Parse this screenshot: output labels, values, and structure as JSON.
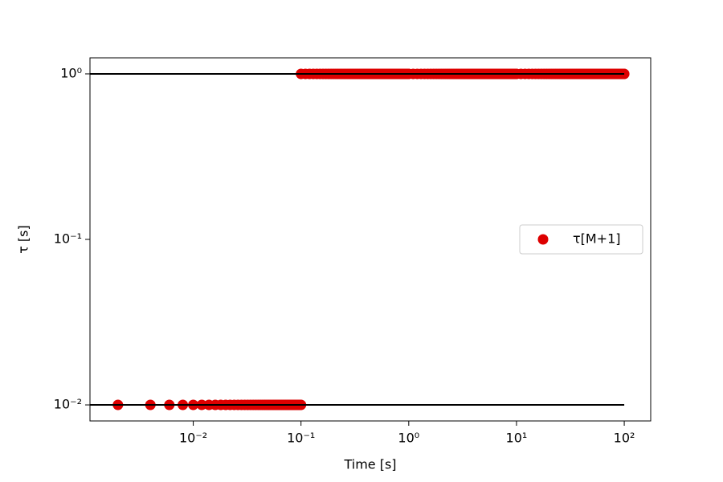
{
  "chart_data": {
    "type": "scatter",
    "xlabel": "Time [s]",
    "ylabel": "τ [s]",
    "xscale": "log",
    "yscale": "log",
    "xlim": [
      0.0011,
      176
    ],
    "ylim": [
      0.008,
      1.25
    ],
    "xticks": [
      {
        "value": 0.01,
        "label": "10⁻²"
      },
      {
        "value": 0.1,
        "label": "10⁻¹"
      },
      {
        "value": 1,
        "label": "10⁰"
      },
      {
        "value": 10,
        "label": "10¹"
      },
      {
        "value": 100,
        "label": "10²"
      }
    ],
    "yticks": [
      {
        "value": 0.01,
        "label": "10⁻²"
      },
      {
        "value": 0.1,
        "label": "10⁻¹"
      },
      {
        "value": 1,
        "label": "10⁰"
      }
    ],
    "legend": "right",
    "hlines": [
      {
        "y": 1,
        "xmax": 100,
        "color": "#000000"
      },
      {
        "y": 0.01,
        "xmax": 100,
        "color": "#000000"
      }
    ],
    "x": [
      0.002,
      0.004,
      0.006,
      0.008,
      0.01,
      0.012,
      0.014,
      0.016,
      0.018,
      0.02,
      0.022,
      0.024,
      0.026,
      0.028,
      0.03,
      0.032,
      0.034,
      0.036,
      0.038,
      0.04,
      0.042,
      0.044,
      0.046,
      0.048,
      0.05,
      0.052,
      0.054,
      0.056,
      0.058,
      0.06,
      0.062,
      0.064,
      0.066,
      0.068,
      0.07,
      0.072,
      0.074,
      0.076,
      0.078,
      0.08,
      0.082,
      0.084,
      0.086,
      0.088,
      0.09,
      0.092,
      0.094,
      0.096,
      0.098,
      0.1,
      0.1,
      0.11,
      0.12,
      0.13,
      0.14,
      0.15,
      0.16,
      0.17,
      0.18,
      0.19,
      0.2,
      0.21,
      0.22,
      0.23,
      0.24,
      0.25,
      0.26,
      0.27,
      0.28,
      0.29,
      0.3,
      0.31,
      0.32,
      0.33,
      0.34,
      0.35,
      0.36,
      0.37,
      0.38,
      0.39,
      0.4,
      0.41,
      0.42,
      0.43,
      0.44,
      0.45,
      0.46,
      0.47,
      0.48,
      0.49,
      0.5,
      0.51,
      0.52,
      0.53,
      0.54,
      0.55,
      0.56,
      0.57,
      0.58,
      0.59,
      0.6,
      0.61,
      0.62,
      0.63,
      0.64,
      0.65,
      0.66,
      0.67,
      0.68,
      0.69,
      0.7,
      0.71,
      0.72,
      0.73,
      0.74,
      0.75,
      0.76,
      0.77,
      0.78,
      0.79,
      0.8,
      0.81,
      0.82,
      0.83,
      0.84,
      0.85,
      0.86,
      0.87,
      0.88,
      0.89,
      0.9,
      0.91,
      0.92,
      0.93,
      0.94,
      0.95,
      0.96,
      0.97,
      0.98,
      0.99,
      1,
      1.1,
      1.2,
      1.3,
      1.4,
      1.5,
      1.6,
      1.7,
      1.8,
      1.9,
      2,
      2.1,
      2.2,
      2.3,
      2.4,
      2.5,
      2.6,
      2.7,
      2.8,
      2.9,
      3,
      3.1,
      3.2,
      3.3,
      3.4,
      3.5,
      3.6,
      3.7,
      3.8,
      3.9,
      4,
      4.1,
      4.2,
      4.3,
      4.4,
      4.5,
      4.6,
      4.7,
      4.8,
      4.9,
      5,
      5.1,
      5.2,
      5.3,
      5.4,
      5.5,
      5.6,
      5.7,
      5.8,
      5.9,
      6,
      6.1,
      6.2,
      6.3,
      6.4,
      6.5,
      6.6,
      6.7,
      6.8,
      6.9,
      7,
      7.1,
      7.2,
      7.3,
      7.4,
      7.5,
      7.6,
      7.7,
      7.8,
      7.9,
      8,
      8.1,
      8.2,
      8.3,
      8.4,
      8.5,
      8.6,
      8.7,
      8.8,
      8.9,
      9,
      9.1,
      9.2,
      9.3,
      9.4,
      9.5,
      9.6,
      9.7,
      9.8,
      9.9,
      10,
      11,
      12,
      13,
      14,
      15,
      16,
      17,
      18,
      19,
      20,
      21,
      22,
      23,
      24,
      25,
      26,
      27,
      28,
      29,
      30,
      31,
      32,
      33,
      34,
      35,
      36,
      37,
      38,
      39,
      40,
      41,
      42,
      43,
      44,
      45,
      46,
      47,
      48,
      49,
      50,
      51,
      52,
      53,
      54,
      55,
      56,
      57,
      58,
      59,
      60,
      61,
      62,
      63,
      64,
      65,
      66,
      67,
      68,
      69,
      70,
      71,
      72,
      73,
      74,
      75,
      76,
      77,
      78,
      79,
      80,
      81,
      82,
      83,
      84,
      85,
      86,
      87,
      88,
      89,
      90,
      91,
      92,
      93,
      94,
      95,
      96,
      97,
      98,
      99,
      100
    ],
    "series": [
      {
        "name": "τ[M+1]",
        "color": "#dd0000",
        "values": [
          0.01,
          0.01,
          0.01,
          0.01,
          0.01,
          0.01,
          0.01,
          0.01,
          0.01,
          0.01,
          0.01,
          0.01,
          0.01,
          0.01,
          0.01,
          0.01,
          0.01,
          0.01,
          0.01,
          0.01,
          0.01,
          0.01,
          0.01,
          0.01,
          0.01,
          0.01,
          0.01,
          0.01,
          0.01,
          0.01,
          0.01,
          0.01,
          0.01,
          0.01,
          0.01,
          0.01,
          0.01,
          0.01,
          0.01,
          0.01,
          0.01,
          0.01,
          0.01,
          0.01,
          0.01,
          0.01,
          0.01,
          0.01,
          0.01,
          0.01,
          1,
          1,
          1,
          1,
          1,
          1,
          1,
          1,
          1,
          1,
          1,
          1,
          1,
          1,
          1,
          1,
          1,
          1,
          1,
          1,
          1,
          1,
          1,
          1,
          1,
          1,
          1,
          1,
          1,
          1,
          1,
          1,
          1,
          1,
          1,
          1,
          1,
          1,
          1,
          1,
          1,
          1,
          1,
          1,
          1,
          1,
          1,
          1,
          1,
          1,
          1,
          1,
          1,
          1,
          1,
          1,
          1,
          1,
          1,
          1,
          1,
          1,
          1,
          1,
          1,
          1,
          1,
          1,
          1,
          1,
          1,
          1,
          1,
          1,
          1,
          1,
          1,
          1,
          1,
          1,
          1,
          1,
          1,
          1,
          1,
          1,
          1,
          1,
          1,
          1,
          1,
          1,
          1,
          1,
          1,
          1,
          1,
          1,
          1,
          1,
          1,
          1,
          1,
          1,
          1,
          1,
          1,
          1,
          1,
          1,
          1,
          1,
          1,
          1,
          1,
          1,
          1,
          1,
          1,
          1,
          1,
          1,
          1,
          1,
          1,
          1,
          1,
          1,
          1,
          1,
          1,
          1,
          1,
          1,
          1,
          1,
          1,
          1,
          1,
          1,
          1,
          1,
          1,
          1,
          1,
          1,
          1,
          1,
          1,
          1,
          1,
          1,
          1,
          1,
          1,
          1,
          1,
          1,
          1,
          1,
          1,
          1,
          1,
          1,
          1,
          1,
          1,
          1,
          1,
          1,
          1,
          1,
          1,
          1,
          1,
          1,
          1,
          1,
          1,
          1,
          1,
          1,
          1,
          1,
          1,
          1,
          1,
          1,
          1,
          1,
          1,
          1,
          1,
          1,
          1,
          1,
          1,
          1,
          1,
          1,
          1,
          1,
          1,
          1,
          1,
          1,
          1,
          1,
          1,
          1,
          1,
          1,
          1,
          1,
          1,
          1,
          1,
          1,
          1,
          1,
          1,
          1,
          1,
          1,
          1,
          1,
          1,
          1,
          1,
          1,
          1,
          1,
          1,
          1,
          1,
          1,
          1,
          1,
          1,
          1,
          1,
          1,
          1,
          1,
          1,
          1,
          1,
          1,
          1,
          1,
          1,
          1,
          1,
          1,
          1,
          1,
          1,
          1,
          1,
          1,
          1,
          1,
          1,
          1,
          1,
          1,
          1,
          1,
          1,
          1,
          1
        ]
      }
    ]
  }
}
